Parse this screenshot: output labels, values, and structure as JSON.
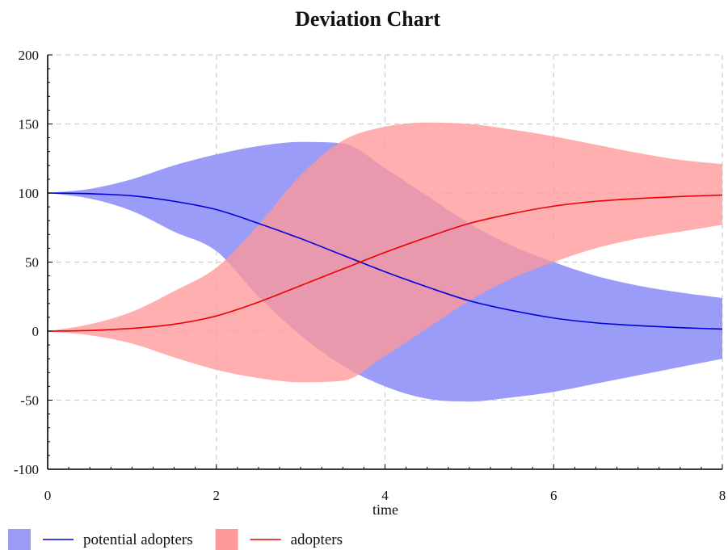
{
  "chart_data": {
    "type": "area",
    "title": "Deviation Chart",
    "xlabel": "time",
    "ylabel": "",
    "xlim": [
      0,
      8
    ],
    "ylim": [
      -100,
      200
    ],
    "xticks": [
      0,
      2,
      4,
      6,
      8
    ],
    "yticks": [
      -100,
      -50,
      0,
      50,
      100,
      150,
      200
    ],
    "grid": true,
    "legend_position": "bottom-left",
    "x": [
      0,
      0.5,
      1,
      1.5,
      2,
      2.5,
      3,
      3.5,
      4,
      4.5,
      5,
      5.5,
      6,
      6.5,
      7,
      7.5,
      8
    ],
    "series": [
      {
        "name": "potential adopters",
        "line_color": "#0000dd",
        "band_color": "#9a9cf8",
        "values": [
          100,
          99.5,
          98,
          94,
          88,
          78,
          67,
          55,
          43,
          32,
          22,
          15,
          9.5,
          6,
          4,
          2.5,
          1.5
        ],
        "upper": [
          100,
          103,
          110,
          120,
          128,
          134,
          137,
          136,
          118,
          98,
          78,
          62,
          50,
          40,
          33,
          28,
          24
        ],
        "lower": [
          100,
          96,
          87,
          72,
          58,
          25,
          -3,
          -25,
          -40,
          -49,
          -51,
          -48,
          -44,
          -38,
          -32,
          -26,
          -20
        ]
      },
      {
        "name": "adopters",
        "line_color": "#ee0000",
        "band_color": "#ff9999",
        "values": [
          0,
          0.5,
          2,
          5,
          11,
          21,
          33,
          45,
          57,
          68,
          78,
          85,
          90.5,
          94,
          96,
          97.5,
          98.5
        ],
        "upper": [
          0,
          5,
          14,
          29,
          46,
          77,
          113,
          138,
          148,
          151,
          150,
          146,
          141,
          135,
          129,
          124,
          121
        ],
        "lower": [
          0,
          -3,
          -9,
          -19,
          -28,
          -34,
          -37,
          -36,
          -18,
          2,
          22,
          38,
          50,
          60,
          67,
          72,
          77
        ]
      }
    ]
  }
}
